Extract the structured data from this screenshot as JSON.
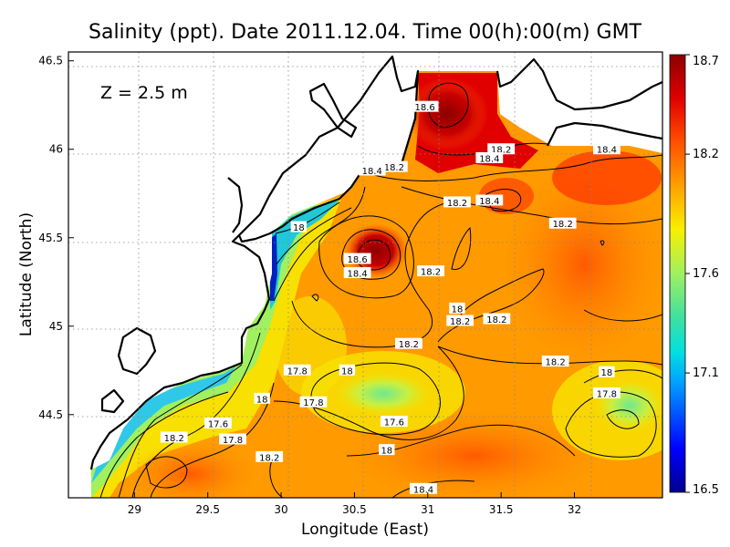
{
  "chart_data": {
    "type": "heatmap",
    "title": "Salinity (ppt). Date 2011.12.04. Time 00(h):00(m) GMT",
    "annotation": "Z = 2.5 m",
    "xlabel": "Longitude (East)",
    "ylabel": "Latitude (North)",
    "xlim": [
      28.55,
      32.6
    ],
    "ylim": [
      44.03,
      46.55
    ],
    "x_ticks": [
      "29",
      "29.5",
      "30",
      "30.5",
      "31",
      "31.5",
      "32"
    ],
    "y_ticks": [
      "44.5",
      "45",
      "45.5",
      "46",
      "46.5"
    ],
    "grid": true,
    "colorbar": {
      "min": 16.5,
      "max": 18.7,
      "ticks": [
        "16.5",
        "17.1",
        "17.6",
        "18.2",
        "18.7"
      ],
      "colors": [
        "#00008b",
        "#0000ff",
        "#00a0ff",
        "#00e0e0",
        "#40e0a0",
        "#a0f060",
        "#f8f000",
        "#ffa000",
        "#ff5000",
        "#e00000",
        "#8b0000"
      ]
    },
    "contour_labels": [
      {
        "text": "18.6",
        "lon": 30.98,
        "lat": 46.24
      },
      {
        "text": "18.2",
        "lon": 30.77,
        "lat": 45.9
      },
      {
        "text": "18.4",
        "lon": 30.62,
        "lat": 45.88
      },
      {
        "text": "18.2",
        "lon": 31.5,
        "lat": 46.0
      },
      {
        "text": "18.4",
        "lon": 31.42,
        "lat": 45.95
      },
      {
        "text": "18.4",
        "lon": 32.22,
        "lat": 46.0
      },
      {
        "text": "18.2",
        "lon": 31.2,
        "lat": 45.7
      },
      {
        "text": "18.4",
        "lon": 31.42,
        "lat": 45.71
      },
      {
        "text": "18.2",
        "lon": 31.92,
        "lat": 45.58
      },
      {
        "text": "18",
        "lon": 30.12,
        "lat": 45.56
      },
      {
        "text": "18.6",
        "lon": 30.52,
        "lat": 45.38
      },
      {
        "text": "18.4",
        "lon": 30.52,
        "lat": 45.3
      },
      {
        "text": "18.2",
        "lon": 31.02,
        "lat": 45.31
      },
      {
        "text": "18",
        "lon": 31.2,
        "lat": 45.1
      },
      {
        "text": "18.2",
        "lon": 31.22,
        "lat": 45.03
      },
      {
        "text": "18.2",
        "lon": 31.47,
        "lat": 45.04
      },
      {
        "text": "18.2",
        "lon": 30.87,
        "lat": 44.9
      },
      {
        "text": "18.2",
        "lon": 31.87,
        "lat": 44.8
      },
      {
        "text": "17.8",
        "lon": 30.11,
        "lat": 44.75
      },
      {
        "text": "18",
        "lon": 30.45,
        "lat": 44.75
      },
      {
        "text": "18",
        "lon": 32.22,
        "lat": 44.74
      },
      {
        "text": "17.8",
        "lon": 32.22,
        "lat": 44.62
      },
      {
        "text": "18",
        "lon": 29.87,
        "lat": 44.59
      },
      {
        "text": "17.8",
        "lon": 30.22,
        "lat": 44.57
      },
      {
        "text": "17.6",
        "lon": 30.77,
        "lat": 44.46
      },
      {
        "text": "17.6",
        "lon": 29.57,
        "lat": 44.45
      },
      {
        "text": "17.8",
        "lon": 29.67,
        "lat": 44.36
      },
      {
        "text": "18.2",
        "lon": 29.27,
        "lat": 44.37
      },
      {
        "text": "18",
        "lon": 30.72,
        "lat": 44.3
      },
      {
        "text": "18.2",
        "lon": 29.92,
        "lat": 44.26
      },
      {
        "text": "18.4",
        "lon": 30.97,
        "lat": 44.08
      }
    ]
  }
}
